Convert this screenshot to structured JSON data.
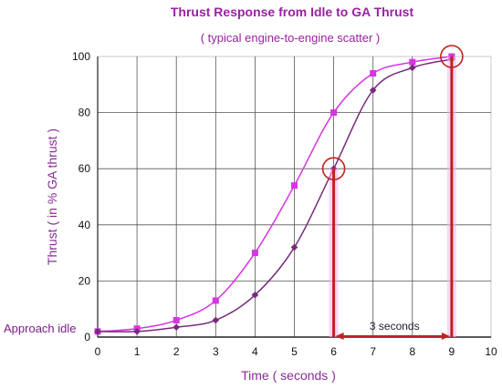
{
  "chart_data": {
    "type": "line",
    "title": "Thrust Response from Idle to GA Thrust",
    "subtitle": "( typical engine-to-engine scatter )",
    "xlabel": "Time ( seconds )",
    "ylabel": "Thrust ( in % GA thrust )",
    "xlim": [
      0,
      10
    ],
    "ylim": [
      0,
      100
    ],
    "x_ticks": [
      "0",
      "1",
      "2",
      "3",
      "4",
      "5",
      "6",
      "7",
      "8",
      "9",
      "10"
    ],
    "y_ticks": [
      "0",
      "20",
      "40",
      "60",
      "80",
      "100"
    ],
    "grid": true,
    "series": [
      {
        "color": "#d833e6",
        "marker": "square",
        "x": [
          0,
          1,
          2,
          3,
          4,
          5,
          6,
          7,
          8,
          9
        ],
        "y": [
          2,
          3,
          6,
          13,
          30,
          54,
          80,
          94,
          98,
          100
        ]
      },
      {
        "color": "#7a2a7e",
        "marker": "diamond",
        "x": [
          0,
          1,
          2,
          3,
          4,
          5,
          6,
          7,
          8,
          9
        ],
        "y": [
          2,
          2,
          3.5,
          6,
          15,
          32,
          60,
          88,
          96,
          99
        ]
      }
    ],
    "annotations": {
      "approach_idle": "Approach idle",
      "duration": "3 seconds",
      "bracket_start_x": 6,
      "bracket_end_x": 9,
      "circle_points": [
        [
          6,
          60
        ],
        [
          9,
          100
        ]
      ]
    }
  }
}
